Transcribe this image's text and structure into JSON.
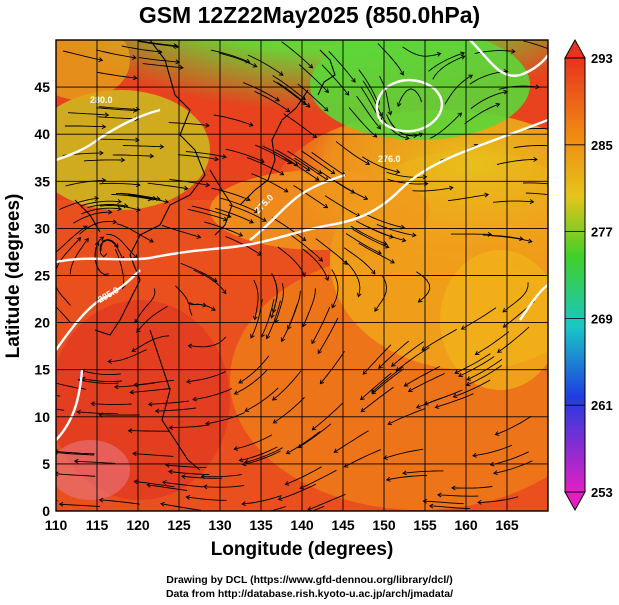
{
  "title": "GSM 12Z22May2025 (850.0hPa)",
  "xlabel": "Longitude (degrees)",
  "ylabel": "Latitude  (degrees)",
  "x_ticks": [
    "110",
    "115",
    "120",
    "125",
    "130",
    "135",
    "140",
    "145",
    "150",
    "155",
    "160",
    "165"
  ],
  "y_ticks": [
    "0",
    "5",
    "10",
    "15",
    "20",
    "25",
    "30",
    "35",
    "40",
    "45"
  ],
  "colorbar": {
    "labels": [
      "293",
      "285",
      "277",
      "269",
      "261",
      "253"
    ],
    "max": 293,
    "min": 253
  },
  "contour_labels": [
    "285.0",
    "280.0",
    "275.0",
    "276.0"
  ],
  "credits": {
    "line1": "Drawing by DCL (https://www.gfd-dennou.org/library/dcl/)",
    "line2": "Data from http://database.rish.kyoto-u.ac.jp/arch/jmadata/"
  },
  "colors": {
    "warm": "#e8331f",
    "orange": "#f08a12",
    "yellow": "#e3c51a",
    "green": "#3fcf2a",
    "cyan": "#19c7c7",
    "blue": "#1f3de0",
    "magenta": "#e31fc4"
  }
}
